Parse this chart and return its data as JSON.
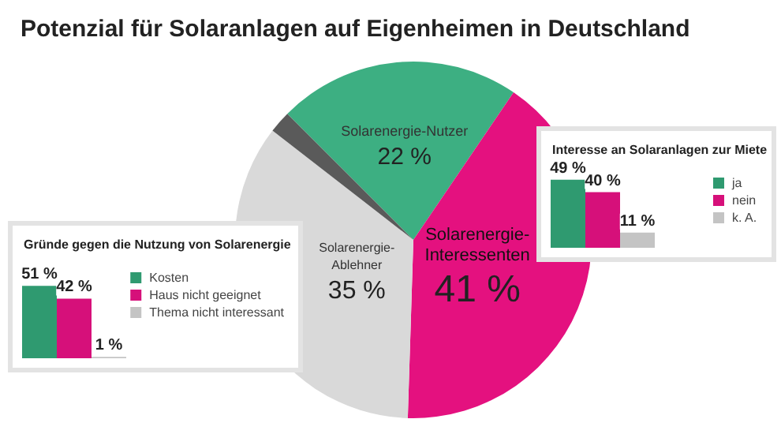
{
  "chart_data": [
    {
      "type": "pie",
      "title": "Potenzial für Solaranlagen auf Eigenheimen in Deutschland",
      "categories": [
        "Solarenergie-Nutzer",
        "Solarenergie-\nInteressenten",
        "Solarenergie-\nAblehner",
        null
      ],
      "values": [
        22,
        41,
        35,
        2
      ],
      "colors": [
        "#3daf82",
        "#e4117f",
        "#d9d9d9",
        "#5a5a5a"
      ],
      "value_labels": [
        "22 %",
        "41 %",
        "35 %",
        null
      ],
      "legend": false
    },
    {
      "type": "bar",
      "title": "Gründe gegen die Nutzung von Solarenergie",
      "categories": [
        null
      ],
      "tick_labels": false,
      "legend": "right",
      "series": [
        {
          "name": "Kosten",
          "color": "#2f9a70",
          "values": [
            51
          ],
          "value_labels": [
            "51 %"
          ]
        },
        {
          "name": "Haus nicht geeignet",
          "color": "#d6107a",
          "values": [
            42
          ],
          "value_labels": [
            "42 %"
          ]
        },
        {
          "name": "Thema nicht interessant",
          "color": "#c4c4c4",
          "values": [
            1
          ],
          "value_labels": [
            "1 %"
          ]
        }
      ]
    },
    {
      "type": "bar",
      "title": "Interesse an Solaranlagen zur Miete",
      "categories": [
        null
      ],
      "tick_labels": false,
      "legend": "right",
      "series": [
        {
          "name": "ja",
          "color": "#2f9a70",
          "values": [
            49
          ],
          "value_labels": [
            "49 %"
          ]
        },
        {
          "name": "nein",
          "color": "#d6107a",
          "values": [
            40
          ],
          "value_labels": [
            "40 %"
          ]
        },
        {
          "name": "k. A.",
          "color": "#c4c4c4",
          "values": [
            11
          ],
          "value_labels": [
            "11 %"
          ]
        }
      ]
    }
  ]
}
